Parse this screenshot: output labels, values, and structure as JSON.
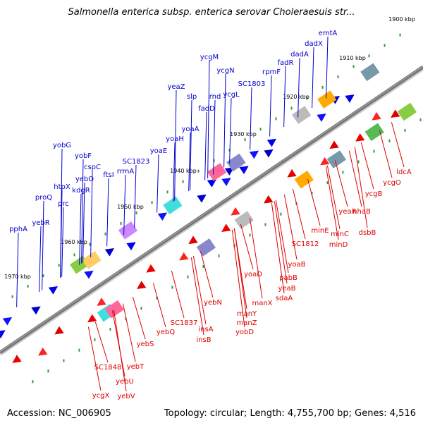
{
  "header": {
    "title": "Salmonella enterica subsp. enterica serovar Choleraesuis str..."
  },
  "footer": {
    "accession": "Accession: NC_006905",
    "summary": "Topology: circular; Length: 4,755,700 bp; Genes: 4,516"
  },
  "colors": {
    "forward_label": "#0000cc",
    "reverse_label": "#dd0000",
    "backbone": "#777777"
  },
  "ticks": [
    "1900 kbp",
    "1910 kbp",
    "1920 kbp",
    "1930 kbp",
    "1940 kbp",
    "1950 kbp",
    "1960 kbp",
    "1970 kbp"
  ],
  "forward_labels": [
    "emtA",
    "dadX",
    "dadA",
    "fadR",
    "rpmF",
    "ycgM",
    "ycgN",
    "SC1803",
    "ycgL",
    "yeaZ",
    "slp",
    "rnd",
    "fadD",
    "yoaA",
    "yoaH",
    "yoaE",
    "SC1823",
    "rrmA",
    "yobG",
    "yobF",
    "cspC",
    "ftsI",
    "yebO",
    "kdgR",
    "htpX",
    "prc",
    "proQ",
    "yebR",
    "pphA"
  ],
  "reverse_labels": [
    "ldcA",
    "ycgO",
    "ycgB",
    "nhaB",
    "yeaR",
    "dsbB",
    "minE",
    "minC",
    "minD",
    "SC1812",
    "yoaB",
    "pabB",
    "yoaD",
    "yeaB",
    "sdaA",
    "manX",
    "yebN",
    "manY",
    "manZ",
    "yobD",
    "SC1837",
    "insA",
    "insB",
    "yebQ",
    "yebS",
    "yebT",
    "SC1848",
    "yebU",
    "ycgX",
    "yebV"
  ]
}
